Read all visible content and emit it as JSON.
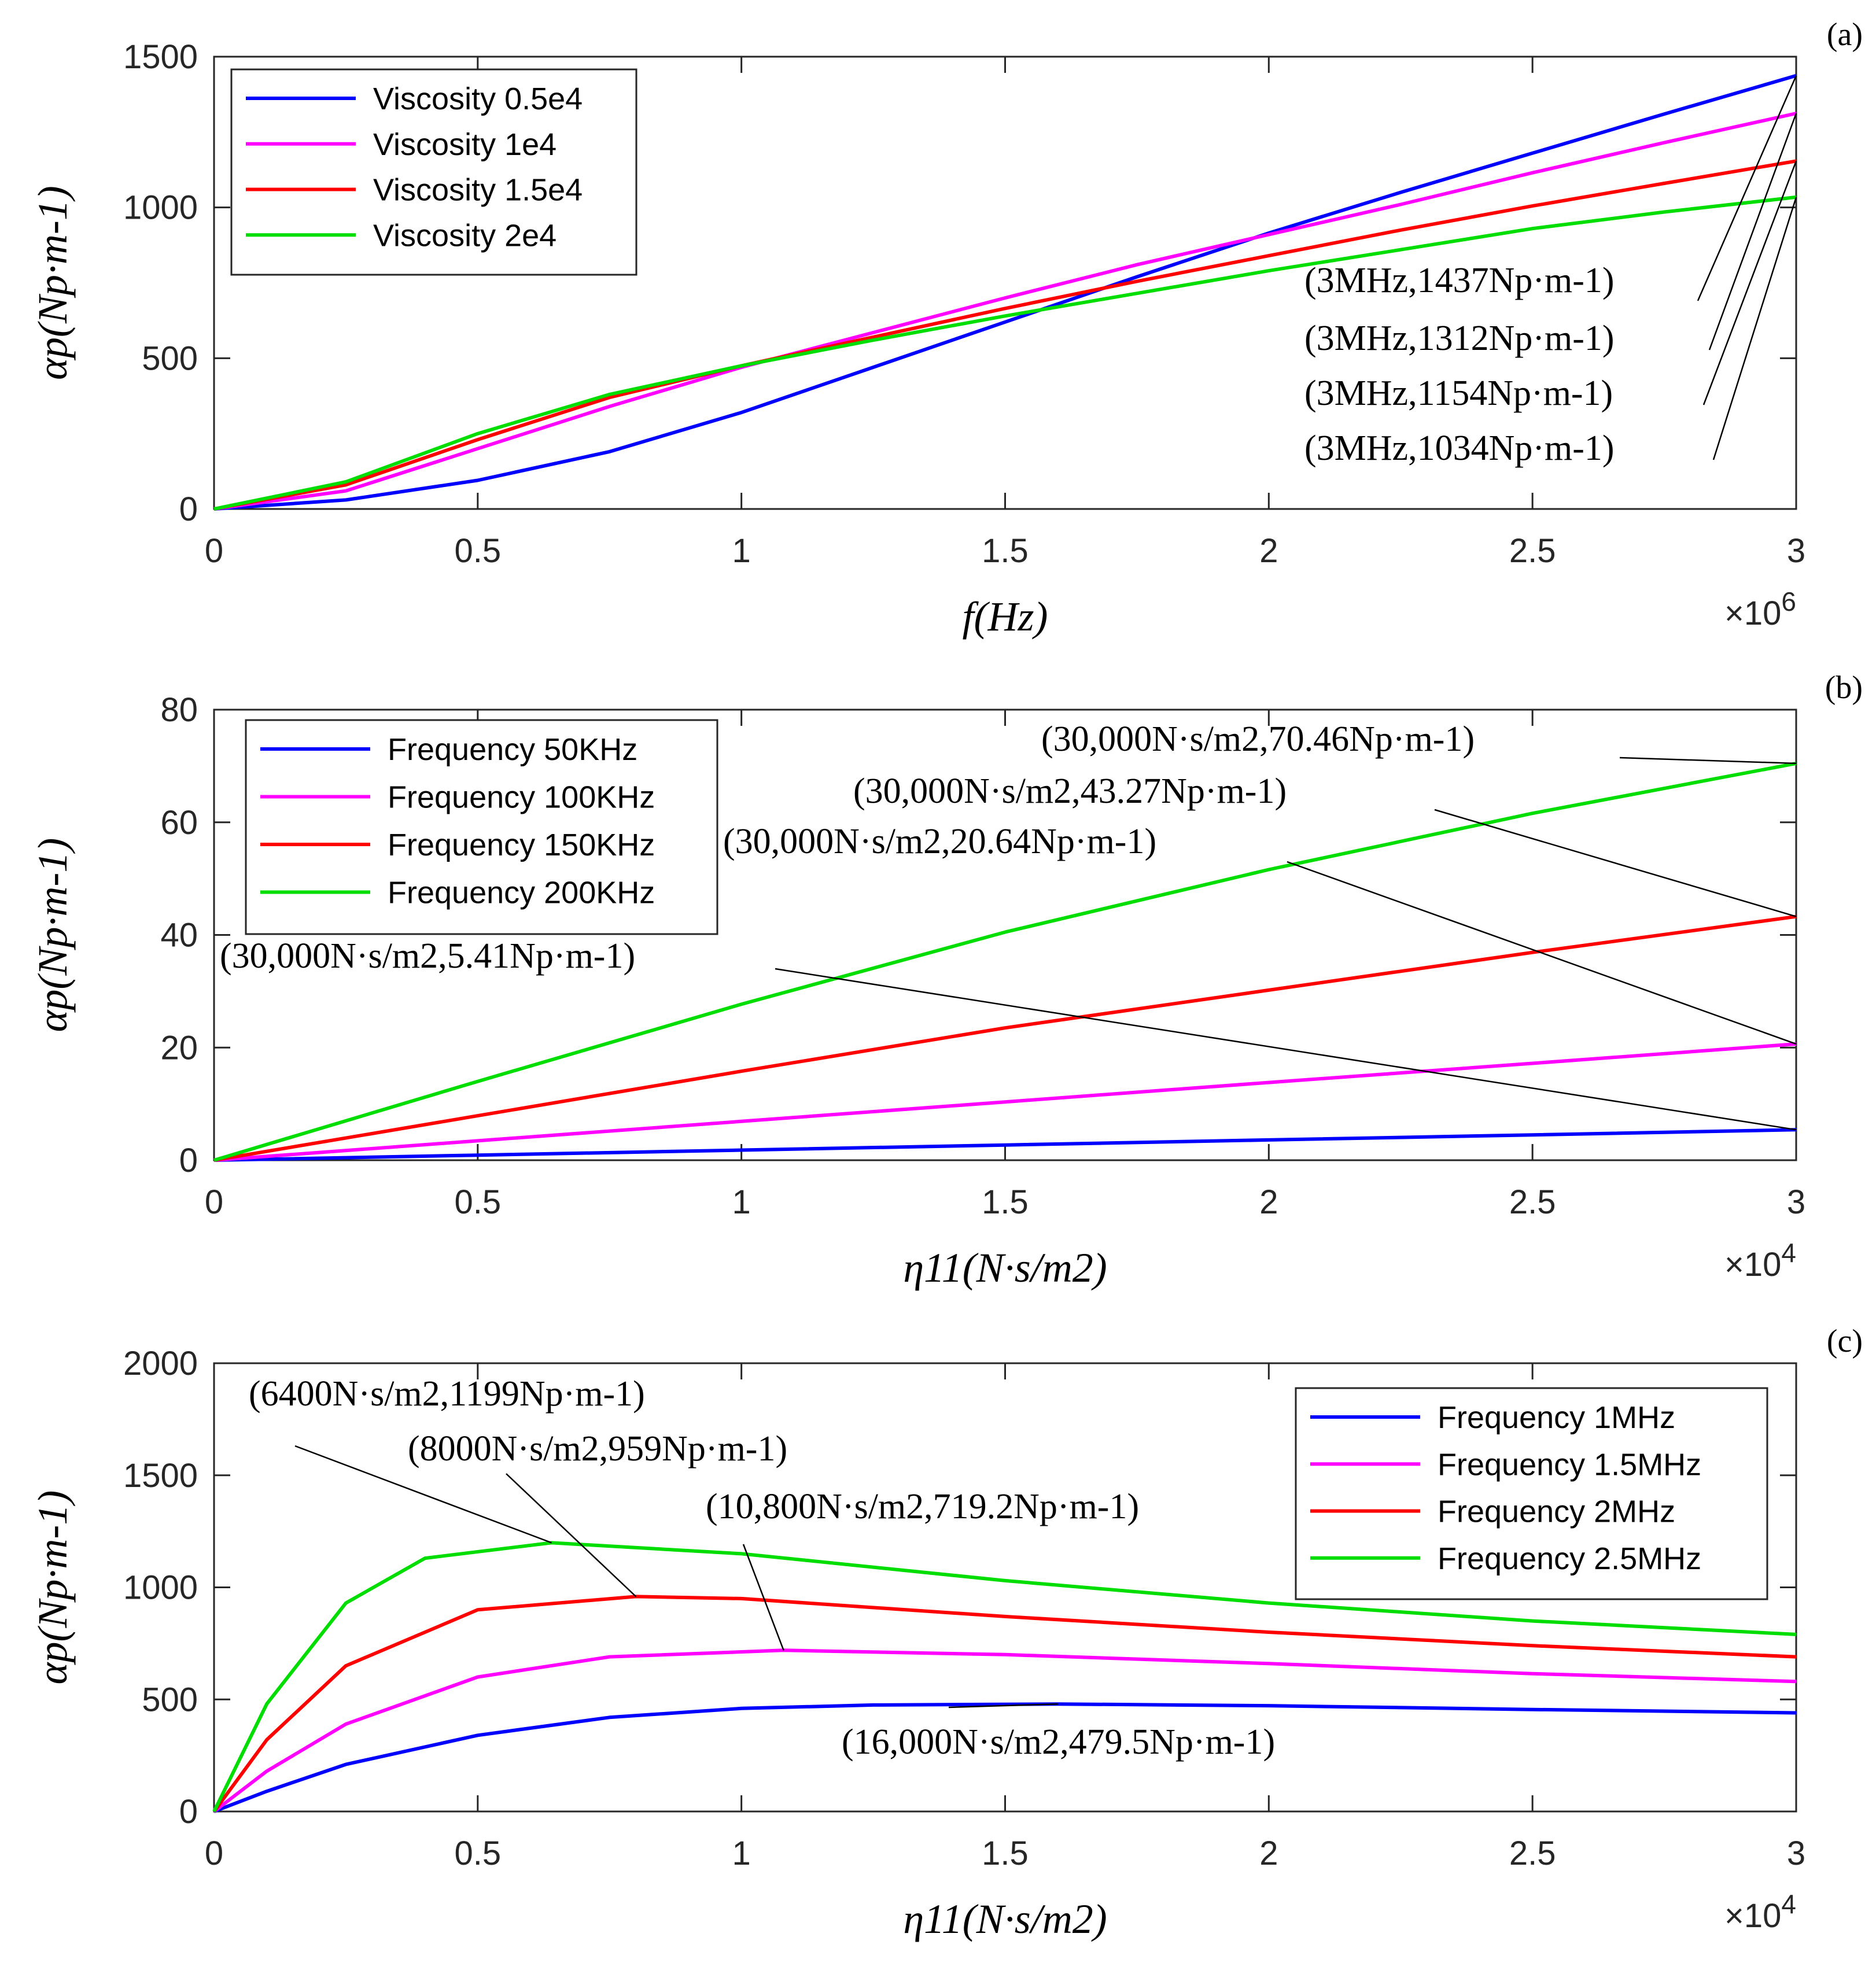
{
  "chart_data": [
    {
      "type": "line",
      "panel_label": "(a)",
      "title": "",
      "xlabel": "f(Hz)",
      "ylabel": "αp(Np·m-1)",
      "x_exponent": "×10^6",
      "xlim": [
        0,
        3
      ],
      "ylim": [
        0,
        1500
      ],
      "xticks": [
        "0",
        "0.5",
        "1",
        "1.5",
        "2",
        "2.5",
        "3"
      ],
      "yticks": [
        "0",
        "500",
        "1000",
        "1500"
      ],
      "legend_position": "top-left",
      "series": [
        {
          "name": "Viscosity 0.5e4",
          "color": "#0000ff",
          "x": [
            0,
            0.25,
            0.5,
            0.75,
            1.0,
            1.25,
            1.5,
            1.75,
            2.0,
            2.25,
            2.5,
            2.75,
            3.0
          ],
          "values": [
            0,
            30,
            95,
            190,
            320,
            470,
            620,
            770,
            915,
            1050,
            1180,
            1310,
            1437
          ]
        },
        {
          "name": "Viscosity 1e4",
          "color": "#ff00ff",
          "x": [
            0,
            0.25,
            0.5,
            0.75,
            1.0,
            1.25,
            1.5,
            1.75,
            2.0,
            2.25,
            2.5,
            2.75,
            3.0
          ],
          "values": [
            0,
            60,
            200,
            340,
            470,
            585,
            700,
            810,
            910,
            1010,
            1115,
            1215,
            1312
          ]
        },
        {
          "name": "Viscosity 1.5e4",
          "color": "#ff0000",
          "x": [
            0,
            0.25,
            0.5,
            0.75,
            1.0,
            1.25,
            1.5,
            1.75,
            2.0,
            2.25,
            2.5,
            2.75,
            3.0
          ],
          "values": [
            0,
            80,
            230,
            370,
            475,
            570,
            665,
            755,
            840,
            925,
            1005,
            1080,
            1154
          ]
        },
        {
          "name": "Viscosity 2e4",
          "color": "#00dd00",
          "x": [
            0,
            0.25,
            0.5,
            0.75,
            1.0,
            1.25,
            1.5,
            1.75,
            2.0,
            2.25,
            2.5,
            2.75,
            3.0
          ],
          "values": [
            0,
            90,
            250,
            380,
            475,
            560,
            640,
            715,
            790,
            860,
            930,
            985,
            1034
          ]
        }
      ],
      "annotations": [
        {
          "label": "(3MHz,1437Np·m-1)",
          "x": 3,
          "y": 1437
        },
        {
          "label": "(3MHz,1312Np·m-1)",
          "x": 3,
          "y": 1312
        },
        {
          "label": "(3MHz,1154Np·m-1)",
          "x": 3,
          "y": 1154
        },
        {
          "label": "(3MHz,1034Np·m-1)",
          "x": 3,
          "y": 1034
        }
      ]
    },
    {
      "type": "line",
      "panel_label": "(b)",
      "title": "",
      "xlabel": "η11(N·s/m2)",
      "ylabel": "αp(Np·m-1)",
      "x_exponent": "×10^4",
      "xlim": [
        0,
        3
      ],
      "ylim": [
        0,
        80
      ],
      "xticks": [
        "0",
        "0.5",
        "1",
        "1.5",
        "2",
        "2.5",
        "3"
      ],
      "yticks": [
        "0",
        "20",
        "40",
        "60",
        "80"
      ],
      "legend_position": "top-left",
      "series": [
        {
          "name": "Frequency 50KHz",
          "color": "#0000ff",
          "x": [
            0,
            0.5,
            1.0,
            1.5,
            2.0,
            2.5,
            3.0
          ],
          "values": [
            0,
            0.9,
            1.8,
            2.7,
            3.6,
            4.5,
            5.41
          ]
        },
        {
          "name": "Frequency 100KHz",
          "color": "#ff00ff",
          "x": [
            0,
            0.5,
            1.0,
            1.5,
            2.0,
            2.5,
            3.0
          ],
          "values": [
            0,
            3.45,
            6.9,
            10.35,
            13.8,
            17.2,
            20.64
          ]
        },
        {
          "name": "Frequency 150KHz",
          "color": "#ff0000",
          "x": [
            0,
            0.5,
            1.0,
            1.5,
            2.0,
            2.5,
            3.0
          ],
          "values": [
            0,
            7.9,
            15.8,
            23.5,
            30.2,
            36.9,
            43.27
          ]
        },
        {
          "name": "Frequency 200KHz",
          "color": "#00dd00",
          "x": [
            0,
            0.5,
            1.0,
            1.5,
            2.0,
            2.5,
            3.0
          ],
          "values": [
            0,
            14.0,
            27.7,
            40.5,
            51.6,
            61.6,
            70.46
          ]
        }
      ],
      "annotations": [
        {
          "label": "(30,000N·s/m2,70.46Np·m-1)",
          "x": 3,
          "y": 70.46
        },
        {
          "label": "(30,000N·s/m2,43.27Np·m-1)",
          "x": 3,
          "y": 43.27
        },
        {
          "label": "(30,000N·s/m2,20.64Np·m-1)",
          "x": 3,
          "y": 20.64
        },
        {
          "label": "(30,000N·s/m2,5.41Np·m-1)",
          "x": 3,
          "y": 5.41
        }
      ]
    },
    {
      "type": "line",
      "panel_label": "(c)",
      "title": "",
      "xlabel": "η11(N·s/m2)",
      "ylabel": "αp(Np·m-1)",
      "x_exponent": "×10^4",
      "xlim": [
        0,
        3
      ],
      "ylim": [
        0,
        2000
      ],
      "xticks": [
        "0",
        "0.5",
        "1",
        "1.5",
        "2",
        "2.5",
        "3"
      ],
      "yticks": [
        "0",
        "500",
        "1000",
        "1500",
        "2000"
      ],
      "legend_position": "top-right",
      "series": [
        {
          "name": "Frequency 1MHz",
          "color": "#0000ff",
          "x": [
            0,
            0.1,
            0.25,
            0.5,
            0.75,
            1.0,
            1.25,
            1.6,
            2.0,
            2.5,
            3.0
          ],
          "values": [
            0,
            90,
            210,
            340,
            420,
            460,
            475,
            479.5,
            472,
            455,
            440
          ]
        },
        {
          "name": "Frequency 1.5MHz",
          "color": "#ff00ff",
          "x": [
            0,
            0.1,
            0.25,
            0.5,
            0.75,
            1.08,
            1.5,
            2.0,
            2.5,
            3.0
          ],
          "values": [
            0,
            180,
            390,
            600,
            690,
            719.2,
            700,
            660,
            615,
            580
          ]
        },
        {
          "name": "Frequency 2MHz",
          "color": "#ff0000",
          "x": [
            0,
            0.1,
            0.25,
            0.5,
            0.8,
            1.0,
            1.5,
            2.0,
            2.5,
            3.0
          ],
          "values": [
            0,
            320,
            650,
            900,
            959,
            950,
            870,
            800,
            740,
            690
          ]
        },
        {
          "name": "Frequency 2.5MHz",
          "color": "#00dd00",
          "x": [
            0,
            0.1,
            0.25,
            0.4,
            0.64,
            1.0,
            1.5,
            2.0,
            2.5,
            3.0
          ],
          "values": [
            0,
            480,
            930,
            1130,
            1199,
            1150,
            1030,
            930,
            850,
            790
          ]
        }
      ],
      "annotations": [
        {
          "label": "(6400N·s/m2,1199Np·m-1)",
          "x": 0.64,
          "y": 1199
        },
        {
          "label": "(8000N·s/m2,959Np·m-1)",
          "x": 0.8,
          "y": 959
        },
        {
          "label": "(10,800N·s/m2,719.2Np·m-1)",
          "x": 1.08,
          "y": 719.2
        },
        {
          "label": "(16,000N·s/m2,479.5Np·m-1)",
          "x": 1.6,
          "y": 479.5
        }
      ]
    }
  ]
}
